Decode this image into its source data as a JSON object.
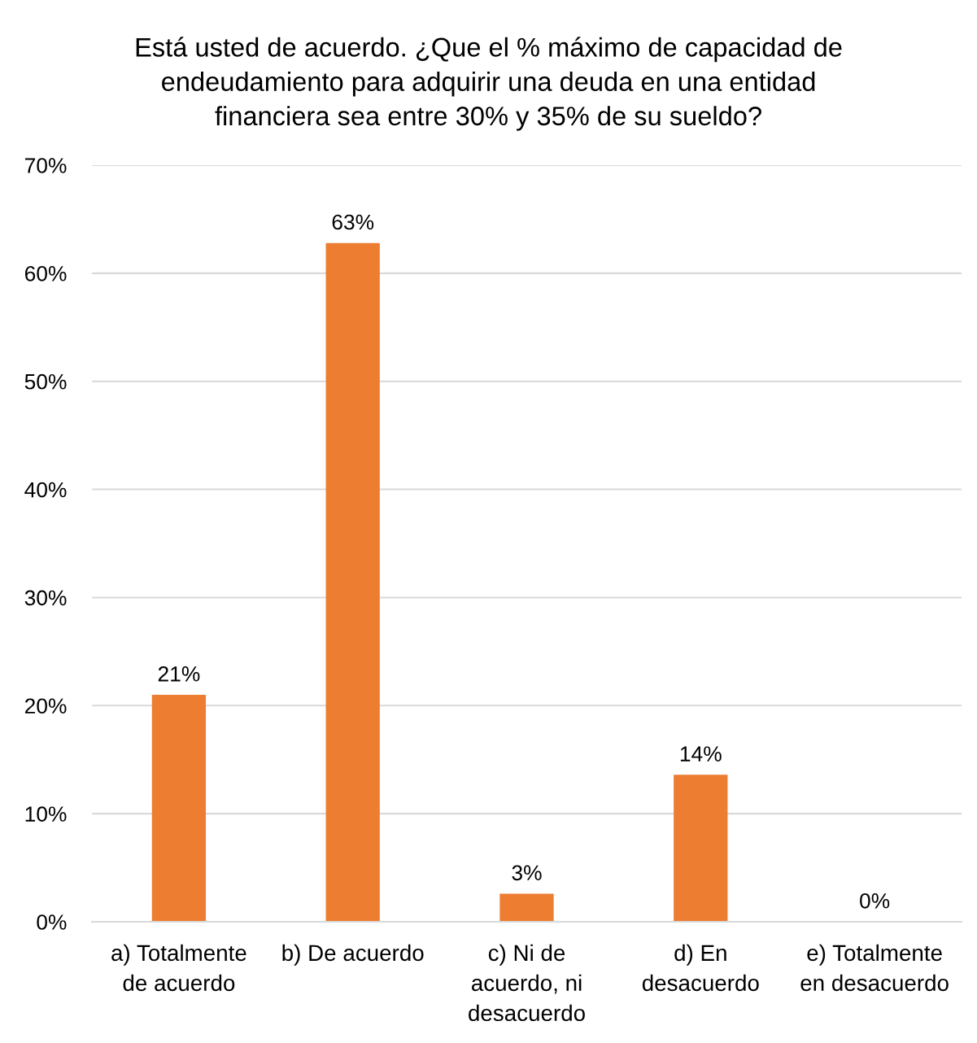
{
  "chart_data": {
    "type": "bar",
    "title": "Está usted de acuerdo. ¿Que el % máximo de capacidad de endeudamiento para adquirir una deuda en una entidad financiera sea entre 30% y 35% de su sueldo?",
    "categories": [
      "a) Totalmente de acuerdo",
      "b) De acuerdo",
      "c) Ni de acuerdo, ni desacuerdo",
      "d) En desacuerdo",
      "e) Totalmente en desacuerdo"
    ],
    "values": [
      21.0,
      62.8,
      2.6,
      13.6,
      0
    ],
    "value_labels": [
      "21%",
      "63%",
      "3%",
      "14%",
      "0%"
    ],
    "color": "#ed7d31",
    "ylim": [
      0,
      70
    ],
    "yticks": [
      {
        "value": 0,
        "label": "0%"
      },
      {
        "value": 10,
        "label": "10%"
      },
      {
        "value": 20,
        "label": "20%"
      },
      {
        "value": 30,
        "label": "30%"
      },
      {
        "value": 40,
        "label": "40%"
      },
      {
        "value": 50,
        "label": "50%"
      },
      {
        "value": 60,
        "label": "60%"
      },
      {
        "value": 70,
        "label": "70%"
      }
    ],
    "grid": "y"
  }
}
